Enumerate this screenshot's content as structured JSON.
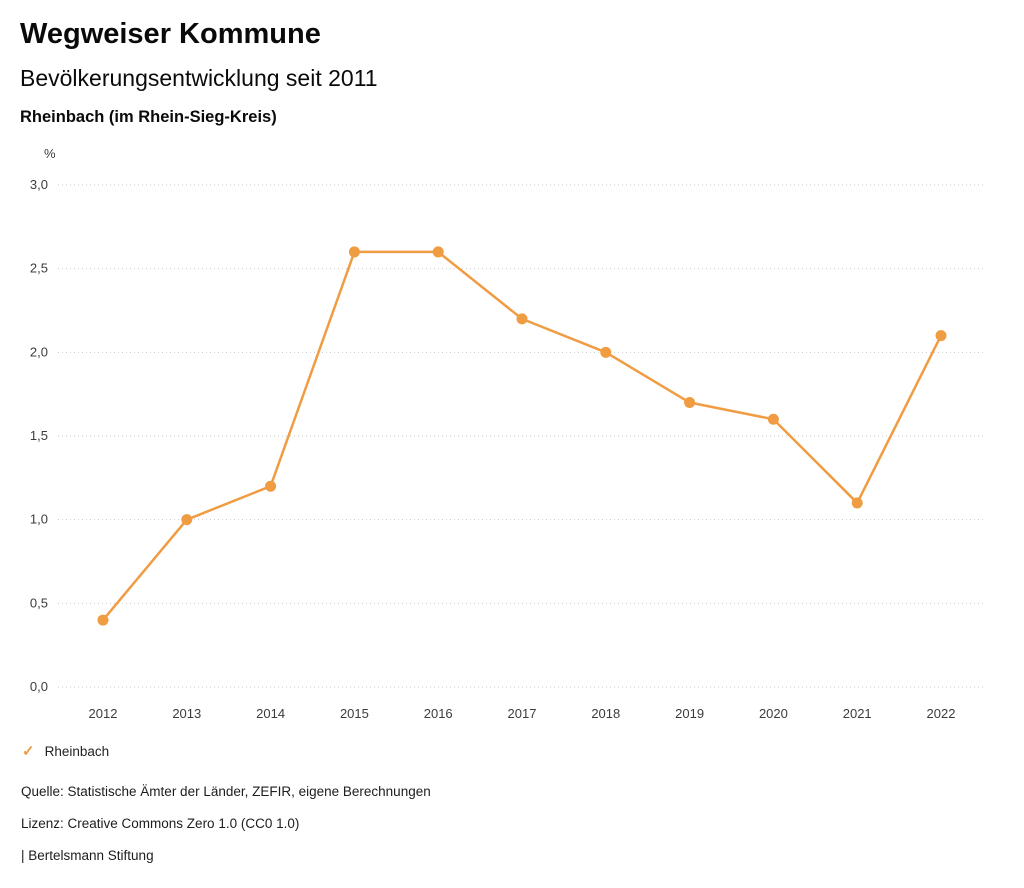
{
  "header": {
    "title": "Wegweiser Kommune",
    "subtitle": "Bevölkerungsentwicklung seit 2011",
    "region": "Rheinbach (im Rhein-Sieg-Kreis)"
  },
  "chart_data": {
    "type": "line",
    "title": "Bevölkerungsentwicklung seit 2011",
    "unit_label": "%",
    "categories": [
      "2012",
      "2013",
      "2014",
      "2015",
      "2016",
      "2017",
      "2018",
      "2019",
      "2020",
      "2021",
      "2022"
    ],
    "series": [
      {
        "name": "Rheinbach",
        "color": "#F09C42",
        "values": [
          0.4,
          1.0,
          1.2,
          2.6,
          2.6,
          2.2,
          2.0,
          1.7,
          1.6,
          1.1,
          2.1
        ]
      }
    ],
    "ylim": [
      0.0,
      3.0
    ],
    "ytick_step": 0.5,
    "ytick_labels": [
      "0,0",
      "0,5",
      "1,0",
      "1,5",
      "2,0",
      "2,5",
      "3,0"
    ],
    "grid": "horizontal-dotted",
    "legend_position": "bottom-left"
  },
  "legend": {
    "items": [
      {
        "label": "Rheinbach",
        "color": "#F09C42",
        "check": "✓"
      }
    ]
  },
  "footer": {
    "source": "Quelle: Statistische Ämter der Länder, ZEFIR, eigene Berechnungen",
    "license": "Lizenz: Creative Commons Zero 1.0 (CC0 1.0)",
    "attribution": "| Bertelsmann Stiftung"
  },
  "colors": {
    "accent": "#F09C42",
    "grid": "#c9c9c9",
    "axis_text": "#3c3c3c"
  }
}
